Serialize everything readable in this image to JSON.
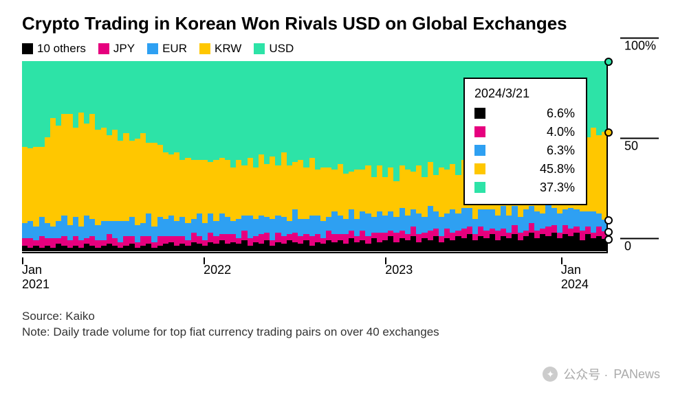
{
  "title": "Crypto Trading in Korean Won Rivals USD on Global Exchanges",
  "legend": [
    {
      "key": "others",
      "label": "10 others",
      "color": "#000000"
    },
    {
      "key": "jpy",
      "label": "JPY",
      "color": "#e6007e"
    },
    {
      "key": "eur",
      "label": "EUR",
      "color": "#2ea0f2"
    },
    {
      "key": "krw",
      "label": "KRW",
      "color": "#ffc700"
    },
    {
      "key": "usd",
      "label": "USD",
      "color": "#2de3a7"
    }
  ],
  "chart": {
    "type": "area_stacked_100pct",
    "background_color": "#ffffff",
    "title_fontsize": 26,
    "label_fontsize": 18,
    "ylim": [
      0,
      100
    ],
    "yticks": [
      {
        "v": 0,
        "label": "0"
      },
      {
        "v": 50,
        "label": "50"
      },
      {
        "v": 100,
        "label": "100%"
      }
    ],
    "xticks": [
      {
        "pos": 0.0,
        "top": "Jan",
        "bottom": "2021"
      },
      {
        "pos": 0.31,
        "top": "",
        "bottom": "2022"
      },
      {
        "pos": 0.62,
        "top": "",
        "bottom": "2023"
      },
      {
        "pos": 0.92,
        "top": "Jan",
        "bottom": "2024"
      }
    ],
    "series_order_bottom_up": [
      "others",
      "jpy",
      "eur",
      "krw",
      "usd"
    ],
    "columns": [
      {
        "others": 3,
        "jpy": 4,
        "eur": 8,
        "krw": 40,
        "usd": 45
      },
      {
        "others": 2,
        "jpy": 5,
        "eur": 9,
        "krw": 38,
        "usd": 46
      },
      {
        "others": 3,
        "jpy": 3,
        "eur": 7,
        "krw": 42,
        "usd": 45
      },
      {
        "others": 2,
        "jpy": 6,
        "eur": 10,
        "krw": 37,
        "usd": 45
      },
      {
        "others": 3,
        "jpy": 4,
        "eur": 8,
        "krw": 45,
        "usd": 40
      },
      {
        "others": 2,
        "jpy": 5,
        "eur": 6,
        "krw": 57,
        "usd": 30
      },
      {
        "others": 4,
        "jpy": 3,
        "eur": 9,
        "krw": 50,
        "usd": 34
      },
      {
        "others": 3,
        "jpy": 5,
        "eur": 11,
        "krw": 53,
        "usd": 28
      },
      {
        "others": 2,
        "jpy": 4,
        "eur": 8,
        "krw": 58,
        "usd": 28
      },
      {
        "others": 3,
        "jpy": 5,
        "eur": 10,
        "krw": 47,
        "usd": 35
      },
      {
        "others": 2,
        "jpy": 4,
        "eur": 7,
        "krw": 60,
        "usd": 27
      },
      {
        "others": 4,
        "jpy": 3,
        "eur": 12,
        "krw": 48,
        "usd": 33
      },
      {
        "others": 3,
        "jpy": 5,
        "eur": 9,
        "krw": 55,
        "usd": 28
      },
      {
        "others": 2,
        "jpy": 4,
        "eur": 8,
        "krw": 50,
        "usd": 36
      },
      {
        "others": 3,
        "jpy": 3,
        "eur": 10,
        "krw": 49,
        "usd": 35
      },
      {
        "others": 4,
        "jpy": 5,
        "eur": 7,
        "krw": 45,
        "usd": 39
      },
      {
        "others": 3,
        "jpy": 4,
        "eur": 9,
        "krw": 48,
        "usd": 36
      },
      {
        "others": 2,
        "jpy": 3,
        "eur": 11,
        "krw": 42,
        "usd": 42
      },
      {
        "others": 3,
        "jpy": 5,
        "eur": 8,
        "krw": 46,
        "usd": 38
      },
      {
        "others": 4,
        "jpy": 4,
        "eur": 10,
        "krw": 40,
        "usd": 42
      },
      {
        "others": 2,
        "jpy": 3,
        "eur": 9,
        "krw": 45,
        "usd": 41
      },
      {
        "others": 3,
        "jpy": 5,
        "eur": 7,
        "krw": 47,
        "usd": 38
      },
      {
        "others": 4,
        "jpy": 4,
        "eur": 12,
        "krw": 37,
        "usd": 43
      },
      {
        "others": 2,
        "jpy": 3,
        "eur": 8,
        "krw": 44,
        "usd": 43
      },
      {
        "others": 3,
        "jpy": 5,
        "eur": 10,
        "krw": 38,
        "usd": 44
      },
      {
        "others": 4,
        "jpy": 4,
        "eur": 9,
        "krw": 35,
        "usd": 48
      },
      {
        "others": 5,
        "jpy": 3,
        "eur": 11,
        "krw": 32,
        "usd": 49
      },
      {
        "others": 3,
        "jpy": 5,
        "eur": 8,
        "krw": 36,
        "usd": 48
      },
      {
        "others": 4,
        "jpy": 4,
        "eur": 10,
        "krw": 30,
        "usd": 52
      },
      {
        "others": 3,
        "jpy": 3,
        "eur": 9,
        "krw": 34,
        "usd": 51
      },
      {
        "others": 5,
        "jpy": 5,
        "eur": 7,
        "krw": 31,
        "usd": 52
      },
      {
        "others": 4,
        "jpy": 4,
        "eur": 12,
        "krw": 28,
        "usd": 52
      },
      {
        "others": 3,
        "jpy": 3,
        "eur": 9,
        "krw": 33,
        "usd": 52
      },
      {
        "others": 5,
        "jpy": 5,
        "eur": 10,
        "krw": 27,
        "usd": 53
      },
      {
        "others": 4,
        "jpy": 4,
        "eur": 8,
        "krw": 32,
        "usd": 52
      },
      {
        "others": 6,
        "jpy": 3,
        "eur": 11,
        "krw": 29,
        "usd": 51
      },
      {
        "others": 4,
        "jpy": 5,
        "eur": 9,
        "krw": 30,
        "usd": 52
      },
      {
        "others": 5,
        "jpy": 4,
        "eur": 7,
        "krw": 28,
        "usd": 56
      },
      {
        "others": 4,
        "jpy": 3,
        "eur": 10,
        "krw": 31,
        "usd": 52
      },
      {
        "others": 6,
        "jpy": 5,
        "eur": 8,
        "krw": 26,
        "usd": 55
      },
      {
        "others": 3,
        "jpy": 4,
        "eur": 12,
        "krw": 30,
        "usd": 51
      },
      {
        "others": 5,
        "jpy": 3,
        "eur": 9,
        "krw": 27,
        "usd": 56
      },
      {
        "others": 4,
        "jpy": 5,
        "eur": 10,
        "krw": 32,
        "usd": 49
      },
      {
        "others": 6,
        "jpy": 4,
        "eur": 8,
        "krw": 28,
        "usd": 54
      },
      {
        "others": 3,
        "jpy": 3,
        "eur": 11,
        "krw": 33,
        "usd": 50
      },
      {
        "others": 5,
        "jpy": 5,
        "eur": 9,
        "krw": 26,
        "usd": 55
      },
      {
        "others": 4,
        "jpy": 4,
        "eur": 10,
        "krw": 34,
        "usd": 48
      },
      {
        "others": 6,
        "jpy": 3,
        "eur": 7,
        "krw": 29,
        "usd": 55
      },
      {
        "others": 5,
        "jpy": 5,
        "eur": 12,
        "krw": 25,
        "usd": 53
      },
      {
        "others": 4,
        "jpy": 4,
        "eur": 9,
        "krw": 31,
        "usd": 52
      },
      {
        "others": 6,
        "jpy": 3,
        "eur": 8,
        "krw": 27,
        "usd": 56
      },
      {
        "others": 3,
        "jpy": 5,
        "eur": 11,
        "krw": 30,
        "usd": 51
      },
      {
        "others": 5,
        "jpy": 4,
        "eur": 10,
        "krw": 24,
        "usd": 57
      },
      {
        "others": 4,
        "jpy": 3,
        "eur": 9,
        "krw": 28,
        "usd": 56
      },
      {
        "others": 6,
        "jpy": 5,
        "eur": 7,
        "krw": 26,
        "usd": 56
      },
      {
        "others": 5,
        "jpy": 4,
        "eur": 12,
        "krw": 22,
        "usd": 57
      },
      {
        "others": 6,
        "jpy": 3,
        "eur": 10,
        "krw": 27,
        "usd": 54
      },
      {
        "others": 4,
        "jpy": 5,
        "eur": 8,
        "krw": 24,
        "usd": 59
      },
      {
        "others": 7,
        "jpy": 4,
        "eur": 11,
        "krw": 20,
        "usd": 58
      },
      {
        "others": 5,
        "jpy": 3,
        "eur": 9,
        "krw": 26,
        "usd": 57
      },
      {
        "others": 6,
        "jpy": 5,
        "eur": 10,
        "krw": 22,
        "usd": 57
      },
      {
        "others": 4,
        "jpy": 4,
        "eur": 12,
        "krw": 25,
        "usd": 55
      },
      {
        "others": 7,
        "jpy": 3,
        "eur": 8,
        "krw": 21,
        "usd": 61
      },
      {
        "others": 5,
        "jpy": 5,
        "eur": 11,
        "krw": 24,
        "usd": 55
      },
      {
        "others": 6,
        "jpy": 4,
        "eur": 9,
        "krw": 20,
        "usd": 61
      },
      {
        "others": 8,
        "jpy": 3,
        "eur": 10,
        "krw": 23,
        "usd": 56
      },
      {
        "others": 5,
        "jpy": 5,
        "eur": 8,
        "krw": 19,
        "usd": 63
      },
      {
        "others": 7,
        "jpy": 4,
        "eur": 12,
        "krw": 22,
        "usd": 55
      },
      {
        "others": 6,
        "jpy": 3,
        "eur": 10,
        "krw": 24,
        "usd": 57
      },
      {
        "others": 8,
        "jpy": 5,
        "eur": 9,
        "krw": 20,
        "usd": 58
      },
      {
        "others": 5,
        "jpy": 4,
        "eur": 11,
        "krw": 25,
        "usd": 55
      },
      {
        "others": 7,
        "jpy": 3,
        "eur": 8,
        "krw": 21,
        "usd": 61
      },
      {
        "others": 6,
        "jpy": 5,
        "eur": 13,
        "krw": 23,
        "usd": 53
      },
      {
        "others": 8,
        "jpy": 4,
        "eur": 9,
        "krw": 19,
        "usd": 60
      },
      {
        "others": 5,
        "jpy": 3,
        "eur": 10,
        "krw": 26,
        "usd": 56
      },
      {
        "others": 7,
        "jpy": 5,
        "eur": 8,
        "krw": 23,
        "usd": 57
      },
      {
        "others": 6,
        "jpy": 4,
        "eur": 12,
        "krw": 24,
        "usd": 54
      },
      {
        "others": 8,
        "jpy": 3,
        "eur": 9,
        "krw": 20,
        "usd": 60
      },
      {
        "others": 7,
        "jpy": 5,
        "eur": 11,
        "krw": 25,
        "usd": 52
      },
      {
        "others": 9,
        "jpy": 4,
        "eur": 10,
        "krw": 22,
        "usd": 55
      },
      {
        "others": 6,
        "jpy": 3,
        "eur": 8,
        "krw": 27,
        "usd": 56
      },
      {
        "others": 8,
        "jpy": 5,
        "eur": 9,
        "krw": 24,
        "usd": 54
      },
      {
        "others": 7,
        "jpy": 4,
        "eur": 11,
        "krw": 28,
        "usd": 50
      },
      {
        "others": 9,
        "jpy": 3,
        "eur": 10,
        "krw": 23,
        "usd": 55
      },
      {
        "others": 6,
        "jpy": 5,
        "eur": 8,
        "krw": 29,
        "usd": 52
      },
      {
        "others": 8,
        "jpy": 4,
        "eur": 12,
        "krw": 25,
        "usd": 51
      },
      {
        "others": 7,
        "jpy": 3,
        "eur": 9,
        "krw": 30,
        "usd": 51
      },
      {
        "others": 9,
        "jpy": 5,
        "eur": 10,
        "krw": 27,
        "usd": 49
      },
      {
        "others": 6,
        "jpy": 4,
        "eur": 8,
        "krw": 32,
        "usd": 50
      },
      {
        "others": 8,
        "jpy": 3,
        "eur": 11,
        "krw": 28,
        "usd": 50
      },
      {
        "others": 10,
        "jpy": 5,
        "eur": 9,
        "krw": 30,
        "usd": 46
      },
      {
        "others": 7,
        "jpy": 4,
        "eur": 10,
        "krw": 34,
        "usd": 45
      },
      {
        "others": 9,
        "jpy": 3,
        "eur": 8,
        "krw": 31,
        "usd": 49
      },
      {
        "others": 8,
        "jpy": 5,
        "eur": 12,
        "krw": 33,
        "usd": 42
      },
      {
        "others": 10,
        "jpy": 4,
        "eur": 9,
        "krw": 36,
        "usd": 41
      },
      {
        "others": 7,
        "jpy": 3,
        "eur": 10,
        "krw": 38,
        "usd": 42
      },
      {
        "others": 9,
        "jpy": 5,
        "eur": 8,
        "krw": 35,
        "usd": 43
      },
      {
        "others": 8,
        "jpy": 4,
        "eur": 11,
        "krw": 40,
        "usd": 37
      },
      {
        "others": 10,
        "jpy": 3,
        "eur": 9,
        "krw": 37,
        "usd": 41
      },
      {
        "others": 6,
        "jpy": 5,
        "eur": 10,
        "krw": 42,
        "usd": 37
      },
      {
        "others": 9,
        "jpy": 4,
        "eur": 8,
        "krw": 39,
        "usd": 40
      },
      {
        "others": 7,
        "jpy": 3,
        "eur": 11,
        "krw": 44,
        "usd": 35
      },
      {
        "others": 8,
        "jpy": 5,
        "eur": 7,
        "krw": 41,
        "usd": 39
      },
      {
        "others": 6.6,
        "jpy": 4.0,
        "eur": 6.3,
        "krw": 45.8,
        "usd": 37.3
      }
    ],
    "tooltip": {
      "date": "2024/3/21",
      "rows": [
        {
          "color": "#000000",
          "value": "6.6%"
        },
        {
          "color": "#e6007e",
          "value": "4.0%"
        },
        {
          "color": "#2ea0f2",
          "value": "6.3%"
        },
        {
          "color": "#ffc700",
          "value": "45.8%"
        },
        {
          "color": "#2de3a7",
          "value": "37.3%"
        }
      ]
    },
    "endmarkers": [
      {
        "cum": 100.0,
        "color": "#2de3a7"
      },
      {
        "cum": 62.7,
        "color": "#ffc700"
      },
      {
        "cum": 16.9,
        "color": "#ffffff"
      },
      {
        "cum": 10.6,
        "color": "#ffffff"
      },
      {
        "cum": 6.6,
        "color": "#ffffff"
      }
    ]
  },
  "footer": {
    "source": "Source: Kaiko",
    "note": "Note: Daily trade volume for top fiat currency trading pairs on over 40 exchanges"
  },
  "watermark": {
    "prefix": "公众号 ·",
    "brand": "PANews"
  }
}
